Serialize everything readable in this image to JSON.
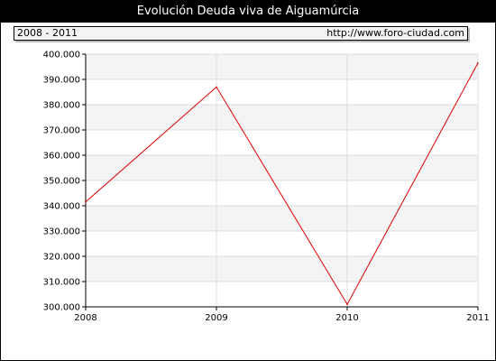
{
  "title": "Evolución Deuda viva de Aiguamúrcia",
  "subtitle_left": "2008 - 2011",
  "subtitle_right": "http://www.foro-ciudad.com",
  "colors": {
    "line": "#dd0000",
    "band": "#f4f4f4",
    "grid": "#dddddd",
    "header": "#000000"
  },
  "chart_data": {
    "type": "line",
    "x": [
      "2008",
      "2009",
      "2010",
      "2011"
    ],
    "series": [
      {
        "values": [
          341500,
          387000,
          301000,
          396500
        ]
      }
    ],
    "ylim": [
      300000,
      400000
    ],
    "yticks": [
      300000,
      310000,
      320000,
      330000,
      340000,
      350000,
      360000,
      370000,
      380000,
      390000,
      400000
    ],
    "ytick_labels": [
      "300.000",
      "310.000",
      "320.000",
      "330.000",
      "340.000",
      "350.000",
      "360.000",
      "370.000",
      "380.000",
      "390.000",
      "400.000"
    ],
    "grid": true
  }
}
